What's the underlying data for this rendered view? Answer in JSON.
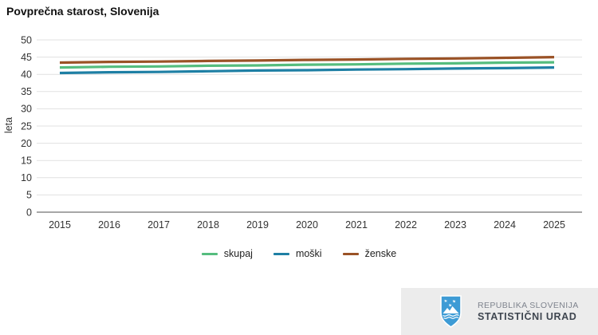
{
  "title": "Povprečna starost, Slovenija",
  "chart_data": {
    "type": "line",
    "title": "Povprečna starost, Slovenija",
    "xlabel": "",
    "ylabel": "leta",
    "x": [
      2015,
      2016,
      2017,
      2018,
      2019,
      2020,
      2021,
      2022,
      2023,
      2024,
      2025
    ],
    "series": [
      {
        "name": "skupaj",
        "color": "#55bd7e",
        "values": [
          42.0,
          42.2,
          42.3,
          42.5,
          42.6,
          42.8,
          42.9,
          43.1,
          43.2,
          43.4,
          43.5
        ]
      },
      {
        "name": "moški",
        "color": "#1e7fa4",
        "values": [
          40.4,
          40.6,
          40.7,
          40.9,
          41.1,
          41.2,
          41.4,
          41.5,
          41.7,
          41.8,
          42.0
        ]
      },
      {
        "name": "ženske",
        "color": "#9a5226",
        "values": [
          43.4,
          43.6,
          43.7,
          43.9,
          44.0,
          44.2,
          44.3,
          44.5,
          44.6,
          44.8,
          45.0
        ]
      }
    ],
    "ylim": [
      0,
      50
    ],
    "ytick_step": 5,
    "grid": true,
    "legend_position": "bottom"
  },
  "colors": {
    "gridline": "#e1e1e1",
    "axis_line": "#8a8a8a",
    "tick_text": "#333333",
    "footer_bg": "#ececec",
    "shield_blue": "#3d9bd5"
  },
  "footer": {
    "org_line1": "REPUBLIKA SLOVENIJA",
    "org_line2": "STATISTIČNI URAD"
  }
}
